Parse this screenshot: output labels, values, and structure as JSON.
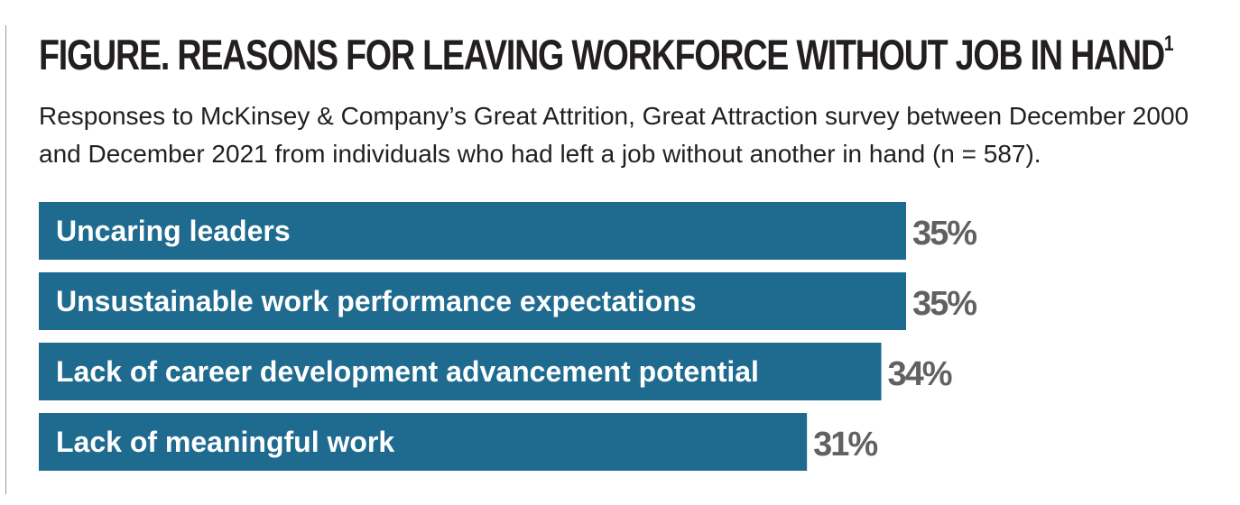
{
  "header": {
    "title": "FIGURE. REASONS FOR LEAVING WORKFORCE WITHOUT JOB IN HAND",
    "title_footnote": "1",
    "subtitle": "Responses to McKinsey & Company’s Great Attrition, Great Attraction survey between December 2000 and December 2021 from individuals who had left a job without another in hand (n = 587)."
  },
  "colors": {
    "bar": "#1f6b8f",
    "value_text": "#616161",
    "title_text": "#231f20"
  },
  "chart_data": {
    "type": "bar",
    "orientation": "horizontal",
    "categories": [
      "Uncaring leaders",
      "Unsustainable work performance expectations",
      "Lack of career development advancement potential",
      "Lack of meaningful work"
    ],
    "values": [
      35,
      35,
      34,
      31
    ],
    "value_labels": [
      "35%",
      "35%",
      "34%",
      "31%"
    ],
    "unit": "%",
    "xlim": [
      0,
      35
    ],
    "grid": false,
    "legend": "none"
  }
}
